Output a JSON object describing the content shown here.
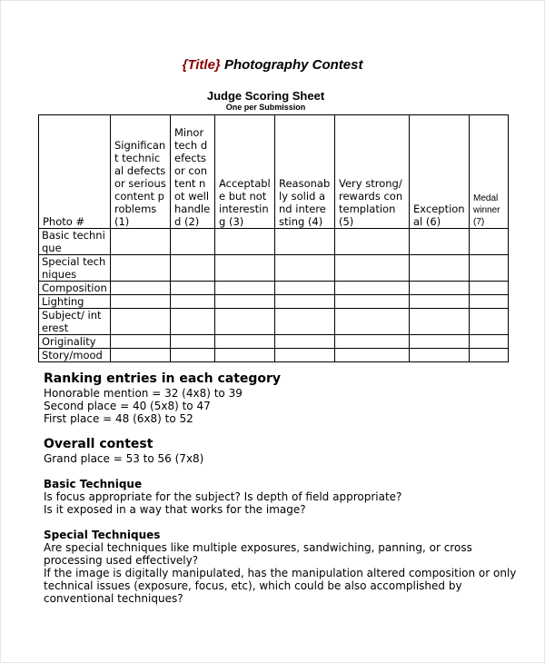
{
  "title": {
    "placeholder": "{Title}",
    "text": " Photography Contest",
    "placeholder_color": "#8b0000"
  },
  "subtitle": "Judge Scoring Sheet",
  "subtitle_note": "One per Submission",
  "table": {
    "headers": [
      "Photo #",
      "Significant technical defects or serious content problems (1)",
      "Minor tech defects or content not well handled (2)",
      "Acceptable but not interesting (3)",
      "Reasonably solid and interesting (4)",
      "Very strong/ rewards contemplation (5)",
      "Exceptional (6)",
      "Medal winner (7)"
    ],
    "rows": [
      "Basic technique",
      "Special techniques",
      "Composition",
      "Lighting",
      "Subject/ interest",
      "Originality",
      "Story/mood"
    ]
  },
  "ranking": {
    "heading": "Ranking entries in each category",
    "lines": [
      "Honorable mention = 32 (4x8) to 39",
      "Second place = 40 (5x8) to 47",
      "First place = 48 (6x8) to 52"
    ]
  },
  "overall": {
    "heading": "Overall contest",
    "lines": [
      "Grand place = 53 to 56 (7x8)"
    ]
  },
  "basic": {
    "heading": "Basic Technique",
    "lines": [
      "Is focus appropriate for the subject? Is depth of field appropriate?",
      "Is it exposed in a way that works for the image?"
    ]
  },
  "special": {
    "heading": "Special Techniques",
    "lines": [
      "Are special techniques like multiple exposures, sandwiching, panning, or cross",
      "processing used effectively?",
      "If the image is digitally manipulated, has the manipulation altered composition or only",
      "technical issues (exposure, focus, etc), which could be also accomplished by",
      "conventional techniques?"
    ]
  }
}
